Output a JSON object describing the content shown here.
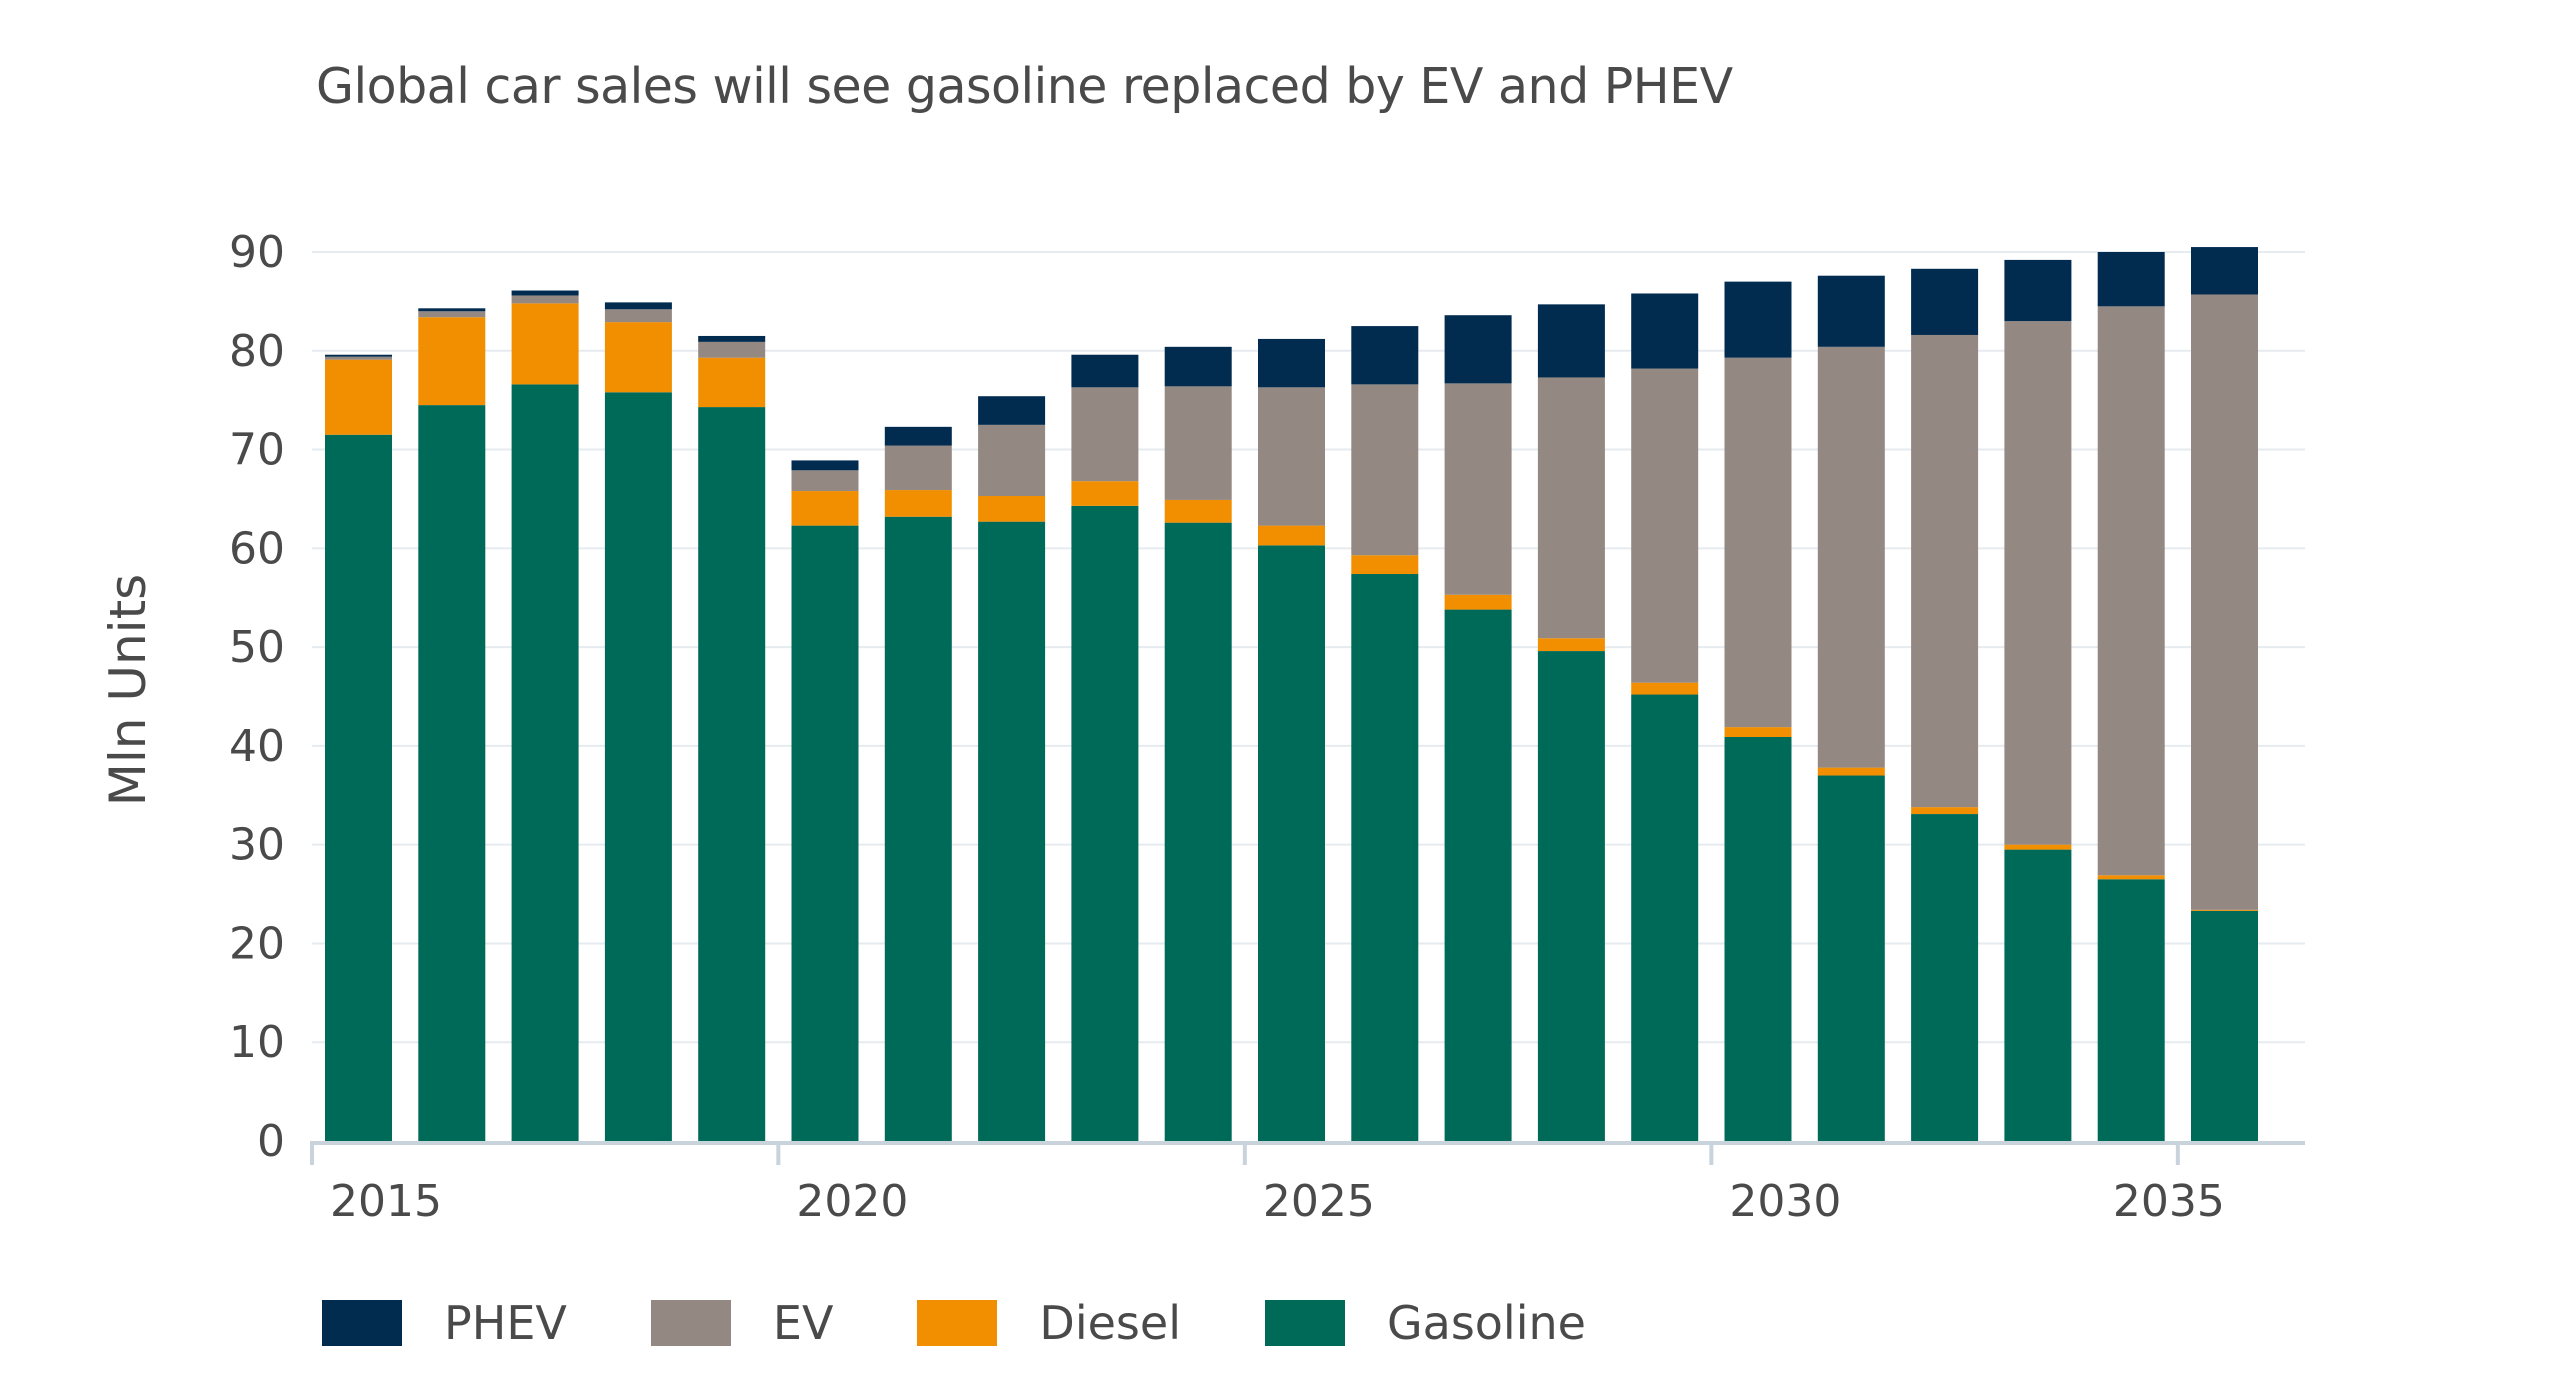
{
  "chart_data": {
    "type": "bar",
    "stacked": true,
    "title": "Global car sales will see gasoline replaced by EV and PHEV",
    "xlabel": "",
    "ylabel": "Mln Units",
    "ylim": [
      0,
      90
    ],
    "yticks": [
      0,
      10,
      20,
      30,
      40,
      50,
      60,
      70,
      80,
      90
    ],
    "xtick_labels": [
      "2015",
      "2020",
      "2025",
      "2030",
      "2035"
    ],
    "grid": true,
    "legend_position": "bottom-left",
    "categories": [
      "2015",
      "2016",
      "2017",
      "2018",
      "2019",
      "2020",
      "2021",
      "2022",
      "2023",
      "2024",
      "2025",
      "2026",
      "2027",
      "2028",
      "2029",
      "2030",
      "2031",
      "2032",
      "2033",
      "2034",
      "2035"
    ],
    "series": [
      {
        "name": "Gasoline",
        "color": "#006a59",
        "values": [
          71.5,
          74.5,
          76.6,
          75.8,
          74.3,
          62.3,
          63.2,
          62.7,
          64.3,
          62.6,
          60.3,
          57.4,
          53.8,
          49.6,
          45.2,
          40.9,
          37.0,
          33.1,
          29.5,
          26.5,
          23.3
        ]
      },
      {
        "name": "Diesel",
        "color": "#f18f01",
        "values": [
          7.6,
          8.9,
          8.2,
          7.1,
          5.0,
          3.5,
          2.7,
          2.6,
          2.5,
          2.3,
          2.0,
          1.9,
          1.5,
          1.3,
          1.2,
          1.0,
          0.8,
          0.7,
          0.5,
          0.4,
          0.1
        ]
      },
      {
        "name": "EV",
        "color": "#938882",
        "values": [
          0.3,
          0.6,
          0.8,
          1.3,
          1.6,
          2.1,
          4.5,
          7.2,
          9.5,
          11.5,
          14.0,
          17.3,
          21.4,
          26.4,
          31.8,
          37.4,
          42.6,
          47.8,
          53.0,
          57.6,
          62.3
        ]
      },
      {
        "name": "PHEV",
        "color": "#012b4f",
        "values": [
          0.2,
          0.3,
          0.5,
          0.7,
          0.6,
          1.0,
          1.9,
          2.9,
          3.3,
          4.0,
          4.9,
          5.9,
          6.9,
          7.4,
          7.6,
          7.7,
          7.2,
          6.7,
          6.2,
          5.5,
          4.8
        ]
      }
    ]
  },
  "legend": {
    "items": [
      {
        "label": "PHEV",
        "color": "#012b4f"
      },
      {
        "label": "EV",
        "color": "#938882"
      },
      {
        "label": "Diesel",
        "color": "#f18f01"
      },
      {
        "label": "Gasoline",
        "color": "#006a59"
      }
    ]
  }
}
